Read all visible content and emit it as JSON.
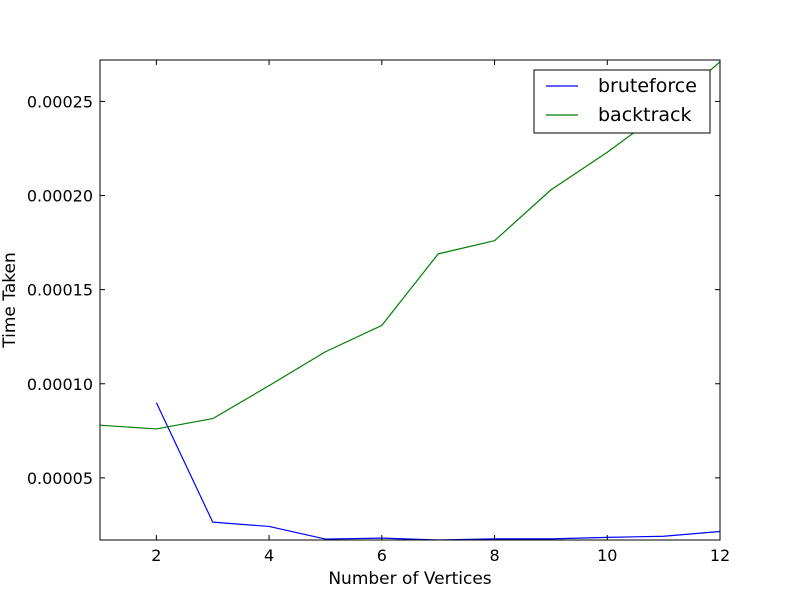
{
  "chart_data": {
    "type": "line",
    "title": "",
    "xlabel": "Number of Vertices",
    "ylabel": "Time Taken",
    "xlim": [
      1,
      12
    ],
    "ylim": [
      1.7e-05,
      0.000272
    ],
    "xticks": [
      2,
      4,
      6,
      8,
      10,
      12
    ],
    "xtick_labels": [
      "2",
      "4",
      "6",
      "8",
      "10",
      "12"
    ],
    "yticks": [
      5e-05,
      0.0001,
      0.00015,
      0.0002,
      0.00025
    ],
    "ytick_labels": [
      "0.00005",
      "0.00010",
      "0.00015",
      "0.00020",
      "0.00025"
    ],
    "grid": false,
    "legend_position": "top-right",
    "series": [
      {
        "name": "bruteforce",
        "color": "#0000ff",
        "x": [
          2,
          3,
          4,
          5,
          6,
          7,
          8,
          9,
          10,
          11,
          12
        ],
        "y": [
          9e-05,
          2.65e-05,
          2.42e-05,
          1.75e-05,
          1.8e-05,
          1.7e-05,
          1.76e-05,
          1.76e-05,
          1.84e-05,
          1.9e-05,
          2.15e-05
        ]
      },
      {
        "name": "backtrack",
        "color": "#008000",
        "x": [
          1,
          2,
          3,
          4,
          5,
          6,
          7,
          8,
          9,
          10,
          11,
          12
        ],
        "y": [
          7.8e-05,
          7.6e-05,
          8.15e-05,
          9.9e-05,
          0.000117,
          0.000131,
          0.000169,
          0.000176,
          0.000203,
          0.000223,
          0.000245,
          0.000271
        ]
      }
    ]
  }
}
